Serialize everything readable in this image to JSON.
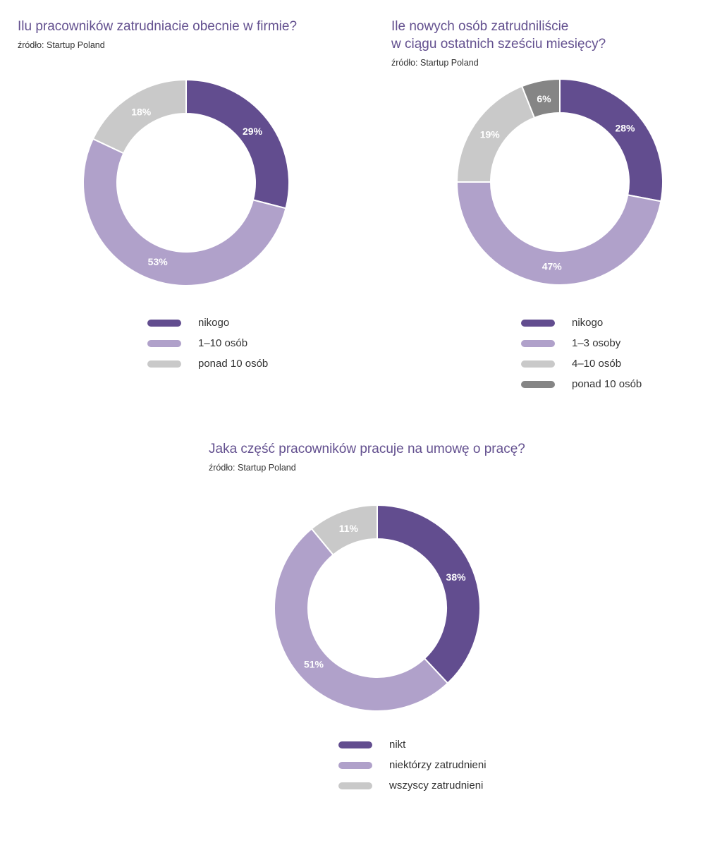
{
  "chart_data": [
    {
      "type": "pie",
      "title": "Ilu pracowników zatrudniacie obecnie w firmie?",
      "source": "źródło: Startup Poland",
      "slices": [
        {
          "label": "nikogo",
          "value": 29,
          "display": "29%",
          "color": "#624d8f"
        },
        {
          "label": "1–10 osób",
          "value": 53,
          "display": "53%",
          "color": "#b0a1ca"
        },
        {
          "label": "ponad 10 osób",
          "value": 18,
          "display": "18%",
          "color": "#c9c9c9"
        }
      ]
    },
    {
      "type": "pie",
      "title": "Ile nowych osób zatrudniliście\nw ciągu ostatnich sześciu miesięcy?",
      "source": "źródło: Startup Poland",
      "slices": [
        {
          "label": "nikogo",
          "value": 28,
          "display": "28%",
          "color": "#624d8f"
        },
        {
          "label": "1–3 osoby",
          "value": 47,
          "display": "47%",
          "color": "#b0a1ca"
        },
        {
          "label": "4–10 osób",
          "value": 19,
          "display": "19%",
          "color": "#c9c9c9"
        },
        {
          "label": "ponad 10 osób",
          "value": 6,
          "display": "6%",
          "color": "#858585"
        }
      ]
    },
    {
      "type": "pie",
      "title": "Jaka część pracowników pracuje na umowę o pracę?",
      "source": "źródło: Startup Poland",
      "slices": [
        {
          "label": "nikt",
          "value": 38,
          "display": "38%",
          "color": "#624d8f"
        },
        {
          "label": "niektórzy zatrudnieni",
          "value": 51,
          "display": "51%",
          "color": "#b0a1ca"
        },
        {
          "label": "wszyscy zatrudnieni",
          "value": 11,
          "display": "11%",
          "color": "#c9c9c9"
        }
      ]
    }
  ]
}
